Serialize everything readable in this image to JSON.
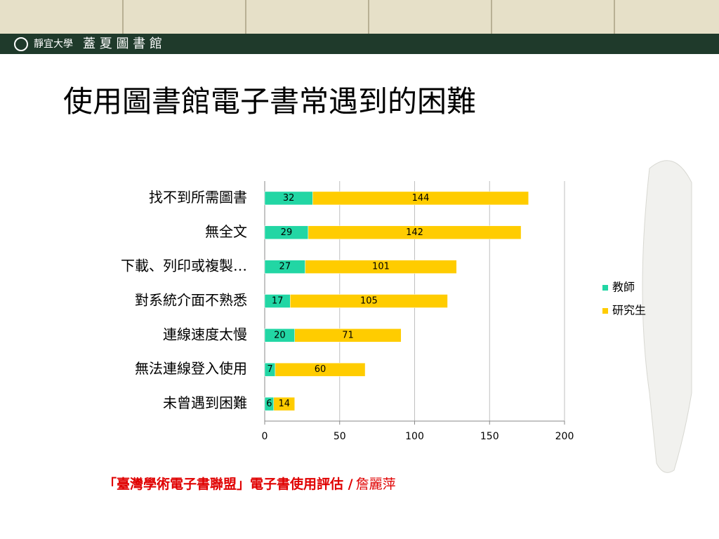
{
  "header": {
    "university": "靜宜大學",
    "library": "蓋 夏 圖 書 館"
  },
  "chart_data": {
    "type": "bar",
    "orientation": "horizontal",
    "stacked": true,
    "title": "使用圖書館電子書常遇到的困難",
    "categories": [
      "找不到所需圖書",
      "無全文",
      "下載、列印或複製…",
      "對系統介面不熟悉",
      "連線速度太慢",
      "無法連線登入使用",
      "未曾遇到困難"
    ],
    "series": [
      {
        "name": "教師",
        "color": "#22d6a4",
        "values": [
          32,
          29,
          27,
          17,
          20,
          7,
          6
        ]
      },
      {
        "name": "研究生",
        "color": "#ffcc00",
        "values": [
          144,
          142,
          101,
          105,
          71,
          60,
          14
        ]
      }
    ],
    "xlim": [
      0,
      200
    ],
    "xticks": [
      0,
      50,
      100,
      150,
      200
    ],
    "grid": true,
    "legend": "right"
  },
  "footer": {
    "source": "「臺灣學術電子書聯盟」電子書使用評估 /",
    "author": "詹麗萍"
  }
}
